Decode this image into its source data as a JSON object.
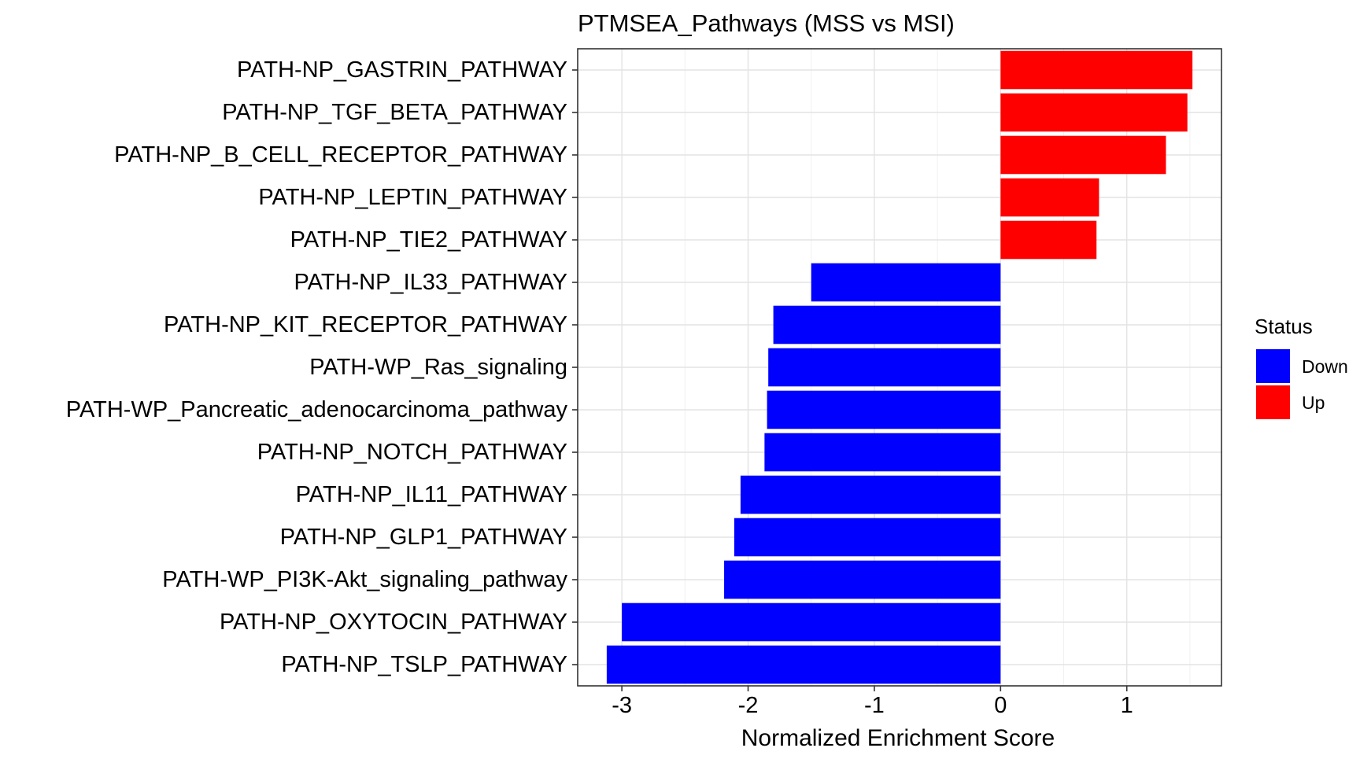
{
  "chart_data": {
    "type": "bar",
    "orientation": "horizontal",
    "title": "PTMSEA_Pathways (MSS vs MSI)",
    "xlabel": "Normalized Enrichment Score",
    "ylabel": "",
    "xlim": [
      -3.35,
      1.75
    ],
    "xticks": [
      -3,
      -2,
      -1,
      0,
      1
    ],
    "xtick_labels": [
      "-3",
      "-2",
      "-1",
      "0",
      "1"
    ],
    "grid": true,
    "legend": {
      "title": "Status",
      "position": "right",
      "entries": [
        {
          "label": "Down",
          "color": "#0000FF"
        },
        {
          "label": "Up",
          "color": "#FF0000"
        }
      ]
    },
    "categories": [
      "PATH-NP_GASTRIN_PATHWAY",
      "PATH-NP_TGF_BETA_PATHWAY",
      "PATH-NP_B_CELL_RECEPTOR_PATHWAY",
      "PATH-NP_LEPTIN_PATHWAY",
      "PATH-NP_TIE2_PATHWAY",
      "PATH-NP_IL33_PATHWAY",
      "PATH-NP_KIT_RECEPTOR_PATHWAY",
      "PATH-WP_Ras_signaling",
      "PATH-WP_Pancreatic_adenocarcinoma_pathway",
      "PATH-NP_NOTCH_PATHWAY",
      "PATH-NP_IL11_PATHWAY",
      "PATH-NP_GLP1_PATHWAY",
      "PATH-WP_PI3K-Akt_signaling_pathway",
      "PATH-NP_OXYTOCIN_PATHWAY",
      "PATH-NP_TSLP_PATHWAY"
    ],
    "values": [
      1.52,
      1.48,
      1.31,
      0.78,
      0.76,
      -1.5,
      -1.8,
      -1.84,
      -1.85,
      -1.87,
      -2.06,
      -2.11,
      -2.19,
      -3.0,
      -3.12
    ],
    "status": [
      "Up",
      "Up",
      "Up",
      "Up",
      "Up",
      "Down",
      "Down",
      "Down",
      "Down",
      "Down",
      "Down",
      "Down",
      "Down",
      "Down",
      "Down"
    ]
  }
}
